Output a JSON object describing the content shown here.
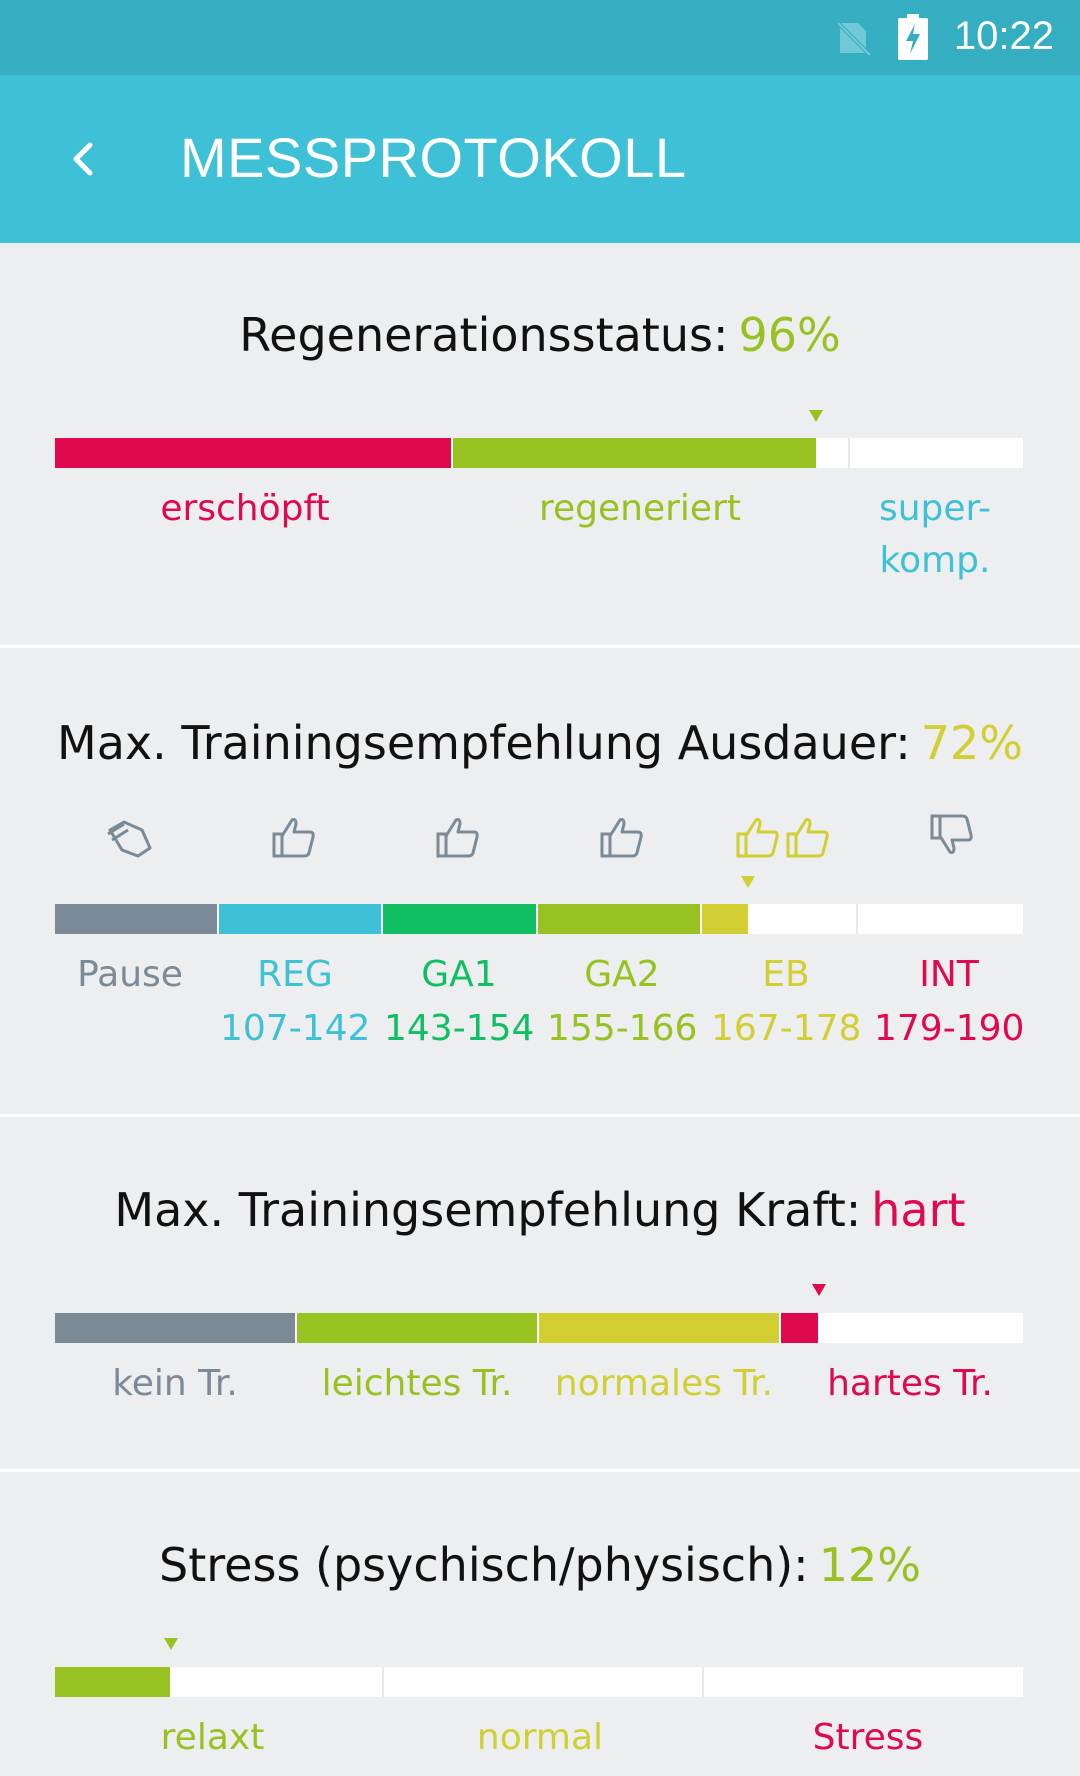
{
  "status_bar": {
    "time": "10:22"
  },
  "app_bar": {
    "title": "MESSPROTOKOLL"
  },
  "regeneration": {
    "label": "Regenerationsstatus:",
    "value": "96%",
    "level": 0.96,
    "labels": [
      "erschöpft",
      "regeneriert",
      "super-",
      "komp."
    ]
  },
  "endurance": {
    "label": "Max. Trainingsempfehlung Ausdauer:",
    "value": "72%",
    "level": 0.72,
    "zones": [
      {
        "name": "Pause",
        "range": ""
      },
      {
        "name": "REG",
        "range": "107-142"
      },
      {
        "name": "GA1",
        "range": "143-154"
      },
      {
        "name": "GA2",
        "range": "155-166"
      },
      {
        "name": "EB",
        "range": "167-178"
      },
      {
        "name": "INT",
        "range": "179-190"
      }
    ],
    "icons": [
      "pause-icon",
      "thumbs-up-icon",
      "thumbs-up-icon",
      "thumbs-up-icon",
      "double-thumbs-up-icon",
      "thumbs-down-icon"
    ]
  },
  "strength": {
    "label": "Max. Trainingsempfehlung Kraft:",
    "value": "hart",
    "labels": [
      "kein Tr.",
      "leichtes Tr.",
      "normales Tr.",
      "hartes Tr."
    ]
  },
  "stress": {
    "label": "Stress (psychisch/physisch):",
    "value": "12%",
    "level": 0.12,
    "labels": [
      "relaxt",
      "normal",
      "Stress"
    ]
  },
  "colors": {
    "red": "#e0084f",
    "green": "#97c222",
    "cyan": "#3ec1d6",
    "emerald": "#0fbf62",
    "yellow": "#d1cf32",
    "grey": "#7a8a97",
    "yellow_text": "#d1cf32"
  }
}
